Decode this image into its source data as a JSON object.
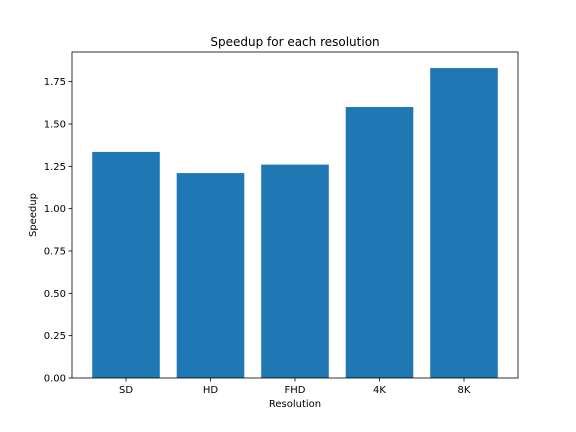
{
  "chart_data": {
    "type": "bar",
    "title": "Speedup for each resolution",
    "xlabel": "Resolution",
    "ylabel": "Speedup",
    "categories": [
      "SD",
      "HD",
      "FHD",
      "4K",
      "8K"
    ],
    "values": [
      1.335,
      1.21,
      1.26,
      1.6,
      1.83
    ],
    "ylim": [
      0,
      1.925
    ],
    "yticks": [
      0.0,
      0.25,
      0.5,
      0.75,
      1.0,
      1.25,
      1.5,
      1.75
    ],
    "ytick_labels": [
      "0.00",
      "0.25",
      "0.50",
      "0.75",
      "1.00",
      "1.25",
      "1.50",
      "1.75"
    ],
    "bar_color": "#1f77b4",
    "grid": false,
    "legend": "none"
  }
}
